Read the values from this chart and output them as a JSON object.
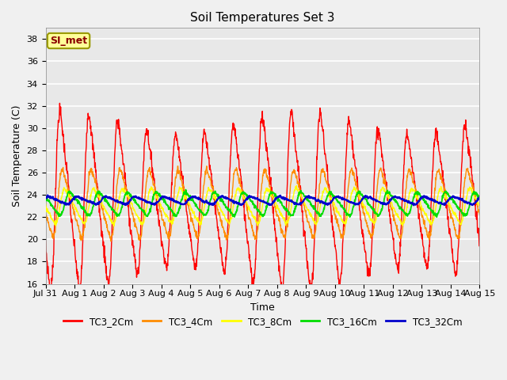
{
  "title": "Soil Temperatures Set 3",
  "xlabel": "Time",
  "ylabel": "Soil Temperature (C)",
  "ylim": [
    16,
    39
  ],
  "yticks": [
    16,
    18,
    20,
    22,
    24,
    26,
    28,
    30,
    32,
    34,
    36,
    38
  ],
  "series_colors": {
    "TC3_2Cm": "#FF0000",
    "TC3_4Cm": "#FF8C00",
    "TC3_8Cm": "#FFFF00",
    "TC3_16Cm": "#00DD00",
    "TC3_32Cm": "#0000CC"
  },
  "annotation_text": "SI_met",
  "annotation_color": "#8B0000",
  "annotation_bg": "#FFFF99",
  "plot_bg": "#E8E8E8",
  "title_fontsize": 11,
  "axis_fontsize": 9,
  "tick_fontsize": 8,
  "xtick_labels": [
    "Jul 31",
    "Aug 1",
    "Aug 2",
    "Aug 3",
    "Aug 4",
    "Aug 5",
    "Aug 6",
    "Aug 7",
    "Aug 8",
    "Aug 9",
    "Aug 10",
    "Aug 11",
    "Aug 12",
    "Aug 13",
    "Aug 14",
    "Aug 15"
  ],
  "n_days": 15
}
